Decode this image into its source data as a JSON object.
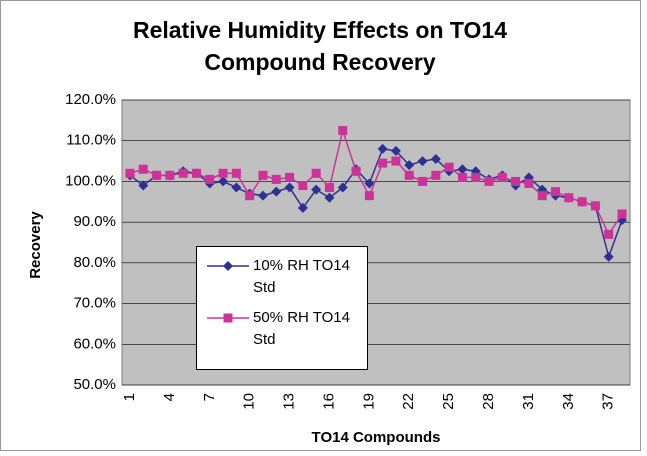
{
  "chart_data": {
    "type": "line",
    "title": "Relative Humidity Effects on TO14 Compound Recovery",
    "x_label": "TO14 Compounds",
    "y_label": "Recovery",
    "categories": [
      1,
      null,
      null,
      4,
      null,
      null,
      7,
      null,
      null,
      10,
      null,
      null,
      13,
      null,
      null,
      16,
      null,
      null,
      19,
      null,
      null,
      22,
      null,
      null,
      25,
      null,
      null,
      28,
      null,
      null,
      31,
      null,
      null,
      34,
      null,
      null,
      37,
      null
    ],
    "series": [
      {
        "name": "10% RH TO14 Std",
        "color": "#2e3192",
        "marker": "diamond",
        "values": [
          101.5,
          99,
          101.5,
          101.5,
          102.5,
          102,
          99.5,
          100,
          98.5,
          97,
          96.5,
          97.5,
          98.5,
          93.5,
          98,
          96,
          98.5,
          103,
          99.5,
          108,
          107.5,
          104,
          105,
          105.5,
          102.5,
          103,
          102.5,
          100.5,
          101.5,
          99,
          101,
          98,
          96.5,
          96,
          95,
          94,
          81.5,
          90.5
        ]
      },
      {
        "name": "50% RH TO14 Std",
        "color": "#cc3399",
        "marker": "square",
        "values": [
          102,
          103,
          101.5,
          101.5,
          102,
          102,
          100.5,
          102,
          102,
          96.5,
          101.5,
          100.5,
          101,
          99,
          102,
          98.5,
          112.5,
          102.5,
          96.5,
          104.5,
          105,
          101.5,
          100,
          101.5,
          103.5,
          101,
          101,
          100,
          101,
          100,
          99.5,
          96.5,
          97.5,
          96,
          95,
          94,
          87,
          92
        ]
      }
    ],
    "ylim": [
      50,
      120
    ],
    "yticks": [
      {
        "value": 50,
        "label": "50.0%"
      },
      {
        "value": 60,
        "label": "60.0%"
      },
      {
        "value": 70,
        "label": "70.0%"
      },
      {
        "value": 80,
        "label": "80.0%"
      },
      {
        "value": 90,
        "label": "90.0%"
      },
      {
        "value": 100,
        "label": "100.0%"
      },
      {
        "value": 110,
        "label": "110.0%"
      },
      {
        "value": 120,
        "label": "120.0%"
      }
    ],
    "grid": true
  }
}
